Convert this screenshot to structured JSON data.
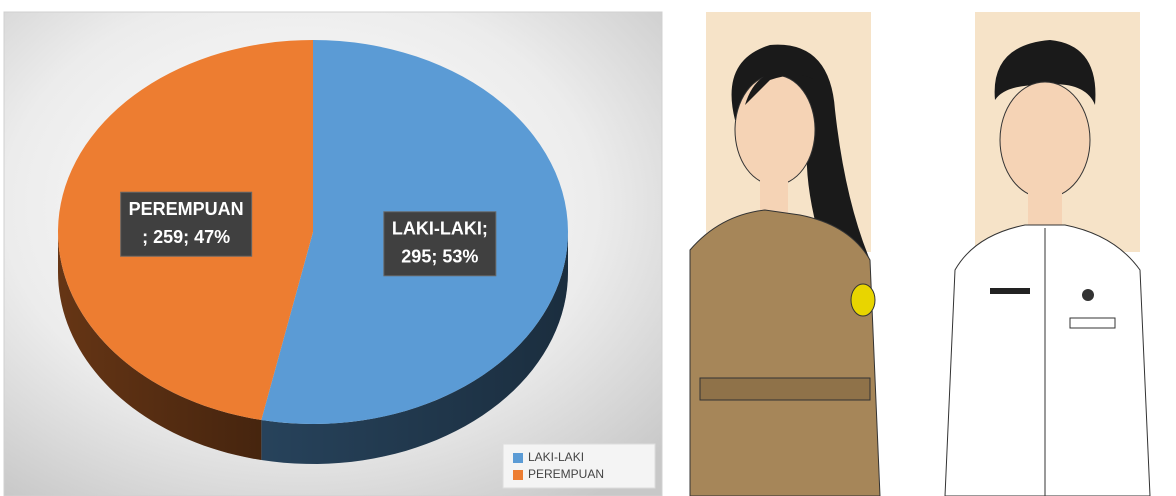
{
  "chart_data": {
    "type": "pie",
    "categories": [
      "LAKI-LAKI",
      "PEREMPUAN"
    ],
    "values": [
      295,
      259
    ],
    "value_labels": [
      [
        "LAKI-LAKI;",
        "295; 53%"
      ],
      [
        "PEREMPUAN",
        "; 259; 47%"
      ]
    ],
    "colors": [
      "#5b9bd5",
      "#ed7d31"
    ],
    "legend": "bottom-right"
  }
}
